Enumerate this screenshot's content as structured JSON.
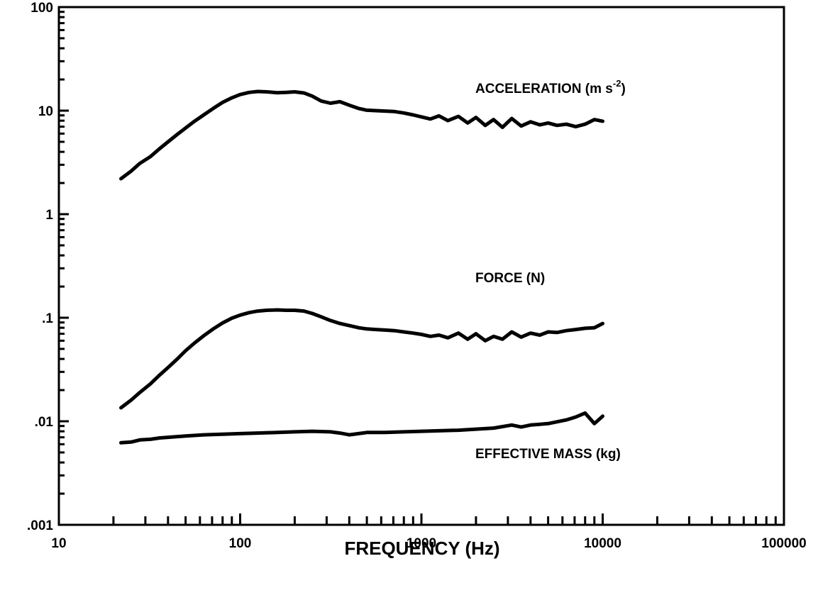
{
  "chart_data": {
    "type": "line",
    "x_scale": "log",
    "y_scale": "log",
    "xlim": [
      10,
      100000
    ],
    "ylim": [
      0.001,
      100
    ],
    "xlabel": "FREQUENCY (Hz)",
    "ylabel": "",
    "grid": false,
    "x_ticks": [
      {
        "value": 10,
        "label": "10"
      },
      {
        "value": 100,
        "label": "100"
      },
      {
        "value": 1000,
        "label": "1000"
      },
      {
        "value": 10000,
        "label": "10000"
      },
      {
        "value": 100000,
        "label": "100000"
      }
    ],
    "y_ticks": [
      {
        "value": 100,
        "label": "100"
      },
      {
        "value": 10,
        "label": "10"
      },
      {
        "value": 1,
        "label": "1"
      },
      {
        "value": 0.1,
        "label": ".1"
      },
      {
        "value": 0.01,
        "label": ".01"
      },
      {
        "value": 0.001,
        "label": ".001"
      }
    ],
    "series": [
      {
        "name": "ACCELERATION (m s-2)",
        "label_main": "ACCELERATION (m s",
        "label_sup": "-2",
        "label_close": ")",
        "x": [
          22,
          25,
          28,
          32,
          36,
          40,
          45,
          50,
          56,
          63,
          71,
          80,
          90,
          100,
          112,
          125,
          140,
          160,
          180,
          200,
          225,
          250,
          280,
          315,
          355,
          400,
          450,
          500,
          560,
          630,
          710,
          800,
          900,
          1000,
          1120,
          1250,
          1400,
          1600,
          1800,
          2000,
          2250,
          2500,
          2800,
          3150,
          3550,
          4000,
          4500,
          5000,
          5600,
          6300,
          7100,
          8000,
          9000,
          10000
        ],
        "y": [
          2.2,
          2.6,
          3.1,
          3.6,
          4.3,
          5.0,
          5.9,
          6.8,
          7.9,
          9.1,
          10.5,
          12.0,
          13.3,
          14.3,
          15.0,
          15.3,
          15.2,
          14.9,
          15.0,
          15.2,
          14.8,
          13.8,
          12.4,
          11.8,
          12.2,
          11.3,
          10.5,
          10.1,
          10.0,
          9.9,
          9.8,
          9.5,
          9.1,
          8.7,
          8.3,
          8.9,
          8.0,
          8.8,
          7.6,
          8.6,
          7.2,
          8.2,
          6.9,
          8.4,
          7.1,
          7.8,
          7.3,
          7.6,
          7.2,
          7.4,
          7.0,
          7.4,
          8.2,
          7.9
        ]
      },
      {
        "name": "FORCE (N)",
        "x": [
          22,
          25,
          28,
          32,
          36,
          40,
          45,
          50,
          56,
          63,
          71,
          80,
          90,
          100,
          112,
          125,
          140,
          160,
          180,
          200,
          225,
          250,
          280,
          315,
          355,
          400,
          450,
          500,
          560,
          630,
          710,
          800,
          900,
          1000,
          1120,
          1250,
          1400,
          1600,
          1800,
          2000,
          2250,
          2500,
          2800,
          3150,
          3550,
          4000,
          4500,
          5000,
          5600,
          6300,
          7100,
          8000,
          9000,
          10000
        ],
        "y": [
          0.0135,
          0.016,
          0.019,
          0.023,
          0.028,
          0.033,
          0.04,
          0.048,
          0.057,
          0.067,
          0.078,
          0.089,
          0.099,
          0.106,
          0.112,
          0.116,
          0.118,
          0.119,
          0.118,
          0.118,
          0.116,
          0.11,
          0.102,
          0.094,
          0.088,
          0.084,
          0.08,
          0.078,
          0.077,
          0.076,
          0.075,
          0.073,
          0.071,
          0.069,
          0.066,
          0.068,
          0.064,
          0.071,
          0.062,
          0.07,
          0.06,
          0.066,
          0.062,
          0.073,
          0.065,
          0.071,
          0.068,
          0.073,
          0.072,
          0.075,
          0.077,
          0.079,
          0.08,
          0.088
        ]
      },
      {
        "name": "EFFECTIVE MASS (kg)",
        "x": [
          22,
          25,
          28,
          32,
          36,
          40,
          50,
          63,
          80,
          100,
          125,
          160,
          200,
          250,
          315,
          355,
          400,
          450,
          500,
          630,
          800,
          1000,
          1250,
          1600,
          2000,
          2500,
          3150,
          3550,
          4000,
          5000,
          6300,
          7100,
          8000,
          9000,
          10000
        ],
        "y": [
          0.0062,
          0.0063,
          0.0066,
          0.0067,
          0.0069,
          0.007,
          0.0072,
          0.0074,
          0.0075,
          0.0076,
          0.0077,
          0.0078,
          0.0079,
          0.008,
          0.0079,
          0.0077,
          0.0074,
          0.0076,
          0.0078,
          0.0078,
          0.0079,
          0.008,
          0.0081,
          0.0082,
          0.0084,
          0.0086,
          0.0092,
          0.0088,
          0.0092,
          0.0095,
          0.0103,
          0.011,
          0.012,
          0.0095,
          0.0112
        ]
      }
    ]
  }
}
